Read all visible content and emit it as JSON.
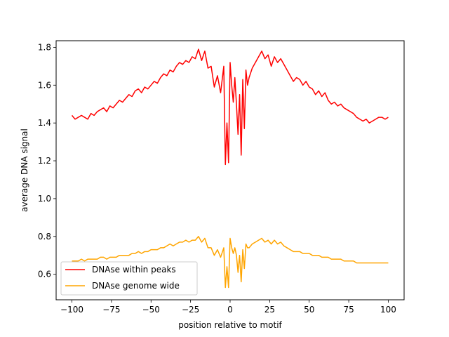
{
  "chart_data": {
    "type": "line",
    "title": "",
    "xlabel": "position relative to motif",
    "ylabel": "average DNA signal",
    "xlim": [
      -110,
      110
    ],
    "ylim": [
      0.465,
      1.835
    ],
    "xticks": [
      -100,
      -75,
      -50,
      -25,
      0,
      25,
      50,
      75,
      100
    ],
    "xtick_labels": [
      "−100",
      "−75",
      "−50",
      "−25",
      "0",
      "25",
      "50",
      "75",
      "100"
    ],
    "yticks": [
      0.6,
      0.8,
      1.0,
      1.2,
      1.4,
      1.6,
      1.8
    ],
    "ytick_labels": [
      "0.6",
      "0.8",
      "1.0",
      "1.2",
      "1.4",
      "1.6",
      "1.8"
    ],
    "grid": false,
    "legend_position": "lower-left",
    "series": [
      {
        "name": "DNAse within peaks",
        "color": "#ff0000",
        "x": [
          -100,
          -98,
          -96,
          -94,
          -92,
          -90,
          -88,
          -86,
          -84,
          -82,
          -80,
          -78,
          -76,
          -74,
          -72,
          -70,
          -68,
          -66,
          -64,
          -62,
          -60,
          -58,
          -56,
          -54,
          -52,
          -50,
          -48,
          -46,
          -44,
          -42,
          -40,
          -38,
          -36,
          -34,
          -32,
          -30,
          -28,
          -26,
          -24,
          -22,
          -20,
          -18,
          -16,
          -14,
          -12,
          -10,
          -8,
          -6,
          -4,
          -3,
          -2,
          -1,
          0,
          1,
          2,
          3,
          4,
          5,
          6,
          7,
          8,
          9,
          10,
          11,
          12,
          14,
          16,
          18,
          20,
          22,
          24,
          26,
          28,
          30,
          32,
          34,
          36,
          38,
          40,
          42,
          44,
          46,
          48,
          50,
          52,
          54,
          56,
          58,
          60,
          62,
          64,
          66,
          68,
          70,
          72,
          74,
          76,
          78,
          80,
          82,
          84,
          86,
          88,
          90,
          92,
          94,
          96,
          98,
          100
        ],
        "y": [
          1.44,
          1.42,
          1.43,
          1.44,
          1.43,
          1.42,
          1.45,
          1.44,
          1.46,
          1.47,
          1.48,
          1.46,
          1.49,
          1.48,
          1.5,
          1.52,
          1.51,
          1.53,
          1.55,
          1.54,
          1.57,
          1.58,
          1.56,
          1.59,
          1.58,
          1.6,
          1.62,
          1.61,
          1.64,
          1.66,
          1.65,
          1.68,
          1.67,
          1.7,
          1.72,
          1.71,
          1.73,
          1.72,
          1.75,
          1.74,
          1.79,
          1.73,
          1.78,
          1.69,
          1.7,
          1.59,
          1.65,
          1.56,
          1.7,
          1.18,
          1.4,
          1.19,
          1.72,
          1.6,
          1.51,
          1.64,
          1.5,
          1.34,
          1.55,
          1.23,
          1.63,
          1.37,
          1.68,
          1.6,
          1.64,
          1.69,
          1.72,
          1.75,
          1.78,
          1.74,
          1.76,
          1.7,
          1.75,
          1.72,
          1.74,
          1.71,
          1.68,
          1.65,
          1.62,
          1.64,
          1.63,
          1.6,
          1.62,
          1.59,
          1.58,
          1.55,
          1.57,
          1.54,
          1.56,
          1.52,
          1.5,
          1.51,
          1.49,
          1.5,
          1.48,
          1.47,
          1.46,
          1.45,
          1.43,
          1.42,
          1.41,
          1.42,
          1.4,
          1.41,
          1.42,
          1.43,
          1.43,
          1.42,
          1.43
        ]
      },
      {
        "name": "DNAse genome wide",
        "color": "#ffa500",
        "x": [
          -100,
          -98,
          -96,
          -94,
          -92,
          -90,
          -88,
          -86,
          -84,
          -82,
          -80,
          -78,
          -76,
          -74,
          -72,
          -70,
          -68,
          -66,
          -64,
          -62,
          -60,
          -58,
          -56,
          -54,
          -52,
          -50,
          -48,
          -46,
          -44,
          -42,
          -40,
          -38,
          -36,
          -34,
          -32,
          -30,
          -28,
          -26,
          -24,
          -22,
          -20,
          -18,
          -16,
          -14,
          -12,
          -10,
          -8,
          -6,
          -4,
          -3,
          -2,
          -1,
          0,
          1,
          2,
          3,
          4,
          5,
          6,
          7,
          8,
          9,
          10,
          11,
          12,
          14,
          16,
          18,
          20,
          22,
          24,
          26,
          28,
          30,
          32,
          34,
          36,
          38,
          40,
          42,
          44,
          46,
          48,
          50,
          52,
          54,
          56,
          58,
          60,
          62,
          64,
          66,
          68,
          70,
          72,
          74,
          76,
          78,
          80,
          82,
          84,
          86,
          88,
          90,
          92,
          94,
          96,
          98,
          100
        ],
        "y": [
          0.67,
          0.67,
          0.67,
          0.68,
          0.67,
          0.68,
          0.68,
          0.68,
          0.68,
          0.69,
          0.69,
          0.68,
          0.69,
          0.69,
          0.69,
          0.7,
          0.7,
          0.7,
          0.7,
          0.71,
          0.71,
          0.72,
          0.71,
          0.72,
          0.72,
          0.73,
          0.73,
          0.73,
          0.74,
          0.74,
          0.75,
          0.76,
          0.75,
          0.76,
          0.77,
          0.77,
          0.78,
          0.77,
          0.78,
          0.78,
          0.8,
          0.77,
          0.79,
          0.74,
          0.74,
          0.7,
          0.73,
          0.69,
          0.74,
          0.53,
          0.64,
          0.53,
          0.79,
          0.74,
          0.71,
          0.74,
          0.7,
          0.61,
          0.7,
          0.56,
          0.73,
          0.63,
          0.76,
          0.74,
          0.74,
          0.76,
          0.77,
          0.78,
          0.79,
          0.77,
          0.78,
          0.76,
          0.78,
          0.76,
          0.77,
          0.75,
          0.74,
          0.73,
          0.72,
          0.72,
          0.72,
          0.71,
          0.71,
          0.71,
          0.7,
          0.7,
          0.7,
          0.69,
          0.69,
          0.69,
          0.68,
          0.68,
          0.68,
          0.68,
          0.67,
          0.67,
          0.67,
          0.67,
          0.66,
          0.66,
          0.66,
          0.66,
          0.66,
          0.66,
          0.66,
          0.66,
          0.66,
          0.66,
          0.66
        ]
      }
    ]
  }
}
